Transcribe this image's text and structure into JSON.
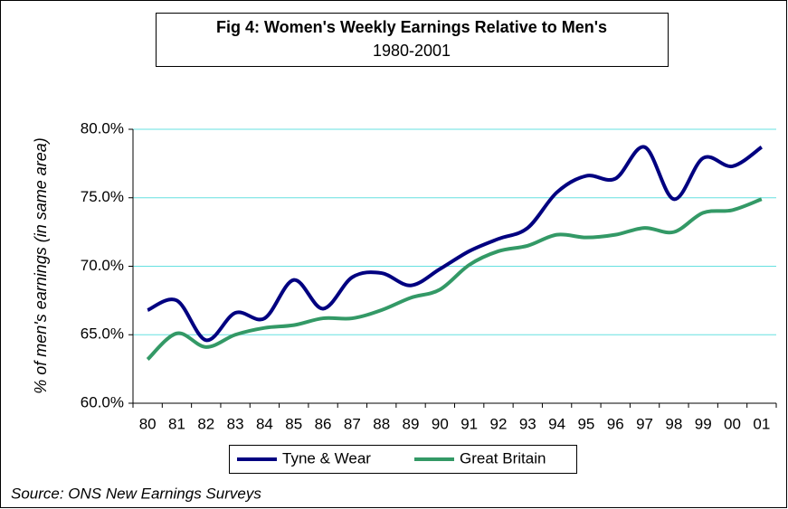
{
  "chart_data": {
    "type": "line",
    "title": "Fig 4: Women's Weekly Earnings Relative to Men's",
    "subtitle": "1980-2001",
    "ylabel": "% of men's earnings (in same area)",
    "source": "Source: ONS New Earnings Surveys",
    "categories": [
      "80",
      "81",
      "82",
      "83",
      "84",
      "85",
      "86",
      "87",
      "88",
      "89",
      "90",
      "91",
      "92",
      "93",
      "94",
      "95",
      "96",
      "97",
      "98",
      "99",
      "00",
      "01"
    ],
    "series": [
      {
        "name": "Tyne & Wear",
        "color": "#000080",
        "values": [
          66.8,
          67.5,
          64.6,
          66.6,
          66.2,
          69.0,
          66.9,
          69.2,
          69.5,
          68.6,
          69.8,
          71.1,
          72.0,
          72.8,
          75.4,
          76.6,
          76.4,
          78.7,
          74.9,
          77.9,
          77.3,
          78.7
        ]
      },
      {
        "name": "Great Britain",
        "color": "#339966",
        "values": [
          63.2,
          65.1,
          64.1,
          65.0,
          65.5,
          65.7,
          66.2,
          66.2,
          66.8,
          67.7,
          68.3,
          70.1,
          71.1,
          71.5,
          72.3,
          72.1,
          72.3,
          72.8,
          72.5,
          73.9,
          74.1,
          74.9
        ]
      }
    ],
    "ylim": [
      60,
      80
    ],
    "yticks": [
      {
        "value": 60,
        "label": "60.0%"
      },
      {
        "value": 65,
        "label": "65.0%"
      },
      {
        "value": 70,
        "label": "70.0%"
      },
      {
        "value": 75,
        "label": "75.0%"
      },
      {
        "value": 80,
        "label": "80.0%"
      }
    ],
    "grid": true,
    "grid_color": "#66e0e0",
    "legend": "bottom",
    "smooth": true
  }
}
